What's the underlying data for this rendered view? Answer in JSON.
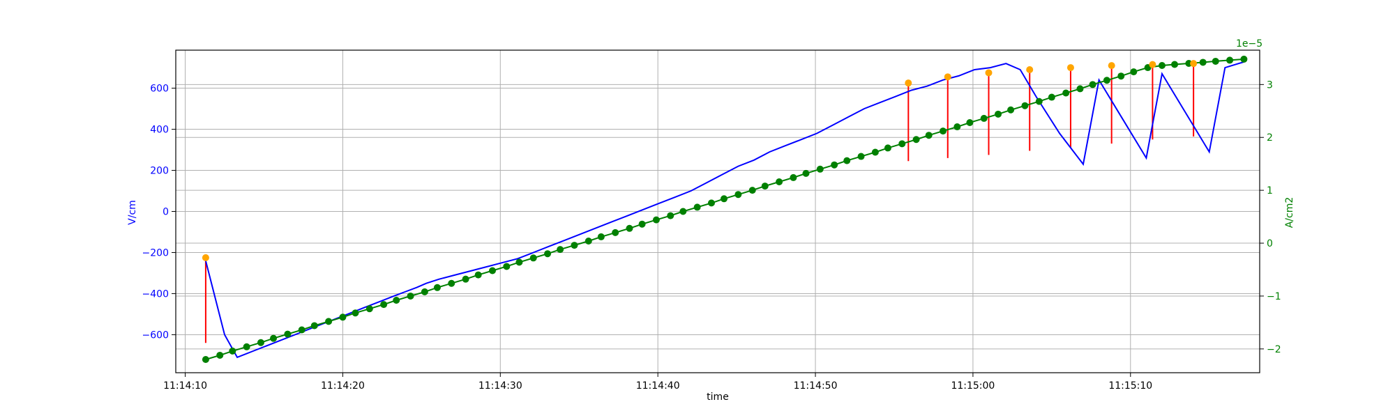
{
  "chart_data": {
    "type": "line",
    "title": "",
    "xlabel": "time",
    "ylabel_left": "V/cm",
    "ylabel_right": "A/cm2",
    "right_axis_multiplier": "1e−5",
    "grid": true,
    "colors": {
      "left_series": "#0000ff",
      "right_series": "#008000",
      "markers_orange": "#ffa500",
      "error_bars": "#ff0000",
      "axis": "#000000",
      "grid": "#b0b0b0"
    },
    "x_ticks": [
      "11:14:10",
      "11:14:20",
      "11:14:30",
      "11:14:40",
      "11:14:50",
      "11:15:00",
      "11:15:10"
    ],
    "xlim_seconds": [
      -0.6,
      68.2
    ],
    "yticks_left": [
      -600,
      -400,
      -200,
      0,
      200,
      400,
      600
    ],
    "ylim_left": [
      -785,
      785
    ],
    "yticks_right": [
      -2,
      -1,
      0,
      1,
      2,
      3
    ],
    "ylim_right": [
      -2.45,
      3.65
    ],
    "series": [
      {
        "axis": "left",
        "x_seconds": [
          1.3,
          2.5,
          3.3,
          4.3,
          5.3,
          6.3,
          7.3,
          8.3,
          9.3,
          10.3,
          11.3,
          12.3,
          13.3,
          14.0,
          14.7,
          15.3,
          16.1,
          17.1,
          18.1,
          19.1,
          20.1,
          21.1,
          22.1,
          23.1,
          24.1,
          25.1,
          26.1,
          27.1,
          28.1,
          29.1,
          30.1,
          31.1,
          32.1,
          33.1,
          34.1,
          35.1,
          36.1,
          37.1,
          38.1,
          39.1,
          40.1,
          41.1,
          42.1,
          43.1,
          44.1,
          45.1,
          46.1,
          47.1,
          48.1,
          49.1,
          50.1,
          51.1,
          52.1,
          53.0,
          54.0,
          55.5,
          57.0,
          58.0,
          59.5,
          61.0,
          62.0,
          63.5,
          65.0,
          66.0,
          67.3
        ],
        "values": [
          -240,
          -600,
          -710,
          -680,
          -650,
          -620,
          -590,
          -560,
          -530,
          -500,
          -470,
          -440,
          -410,
          -390,
          -370,
          -350,
          -330,
          -310,
          -290,
          -270,
          -250,
          -230,
          -200,
          -170,
          -140,
          -110,
          -80,
          -50,
          -20,
          10,
          40,
          70,
          100,
          140,
          180,
          220,
          250,
          290,
          320,
          350,
          380,
          420,
          460,
          500,
          530,
          560,
          590,
          610,
          640,
          660,
          690,
          700,
          720,
          690,
          560,
          380,
          230,
          640,
          450,
          260,
          670,
          480,
          290,
          700,
          730
        ]
      },
      {
        "axis": "right",
        "x_seconds": [
          1.3,
          2.2,
          3.0,
          3.9,
          4.8,
          5.6,
          6.5,
          7.4,
          8.2,
          9.1,
          10.0,
          10.8,
          11.7,
          12.6,
          13.4,
          14.3,
          15.2,
          16.0,
          16.9,
          17.8,
          18.6,
          19.5,
          20.4,
          21.2,
          22.1,
          23.0,
          23.8,
          24.7,
          25.6,
          26.4,
          27.3,
          28.2,
          29.0,
          29.9,
          30.8,
          31.6,
          32.5,
          33.4,
          34.2,
          35.1,
          36.0,
          36.8,
          37.7,
          38.6,
          39.4,
          40.3,
          41.2,
          42.0,
          42.9,
          43.8,
          44.6,
          45.5,
          46.4,
          47.2,
          48.1,
          49.0,
          49.8,
          50.7,
          51.6,
          52.4,
          53.3,
          54.2,
          55.0,
          55.9,
          56.8,
          57.6,
          58.5,
          59.4,
          60.2,
          61.1,
          62.0,
          62.8,
          63.7,
          64.6,
          65.4,
          66.3,
          67.2
        ],
        "values": [
          -2.2,
          -2.12,
          -2.04,
          -1.96,
          -1.88,
          -1.8,
          -1.72,
          -1.64,
          -1.56,
          -1.48,
          -1.4,
          -1.32,
          -1.24,
          -1.16,
          -1.08,
          -1.0,
          -0.92,
          -0.84,
          -0.76,
          -0.68,
          -0.6,
          -0.52,
          -0.44,
          -0.36,
          -0.28,
          -0.2,
          -0.12,
          -0.04,
          0.04,
          0.12,
          0.2,
          0.28,
          0.36,
          0.44,
          0.52,
          0.6,
          0.68,
          0.76,
          0.84,
          0.92,
          1.0,
          1.08,
          1.16,
          1.24,
          1.32,
          1.4,
          1.48,
          1.56,
          1.64,
          1.72,
          1.8,
          1.88,
          1.96,
          2.04,
          2.12,
          2.2,
          2.28,
          2.36,
          2.44,
          2.52,
          2.6,
          2.68,
          2.76,
          2.84,
          2.92,
          3.0,
          3.08,
          3.16,
          3.24,
          3.32,
          3.36,
          3.38,
          3.4,
          3.42,
          3.44,
          3.46,
          3.48
        ]
      }
    ],
    "orange_points": {
      "axis": "left",
      "x_seconds": [
        1.3,
        45.9,
        48.4,
        51.0,
        53.6,
        56.2,
        58.8,
        61.4,
        64.0
      ],
      "values": [
        -225,
        625,
        655,
        675,
        690,
        700,
        710,
        715,
        720
      ]
    },
    "error_bars": {
      "axis": "left",
      "x_seconds": [
        1.3,
        45.9,
        48.4,
        51.0,
        53.6,
        56.2,
        58.8,
        61.4,
        64.0
      ],
      "low": [
        -640,
        245,
        260,
        275,
        295,
        310,
        330,
        350,
        365
      ],
      "high": [
        -225,
        625,
        655,
        675,
        690,
        700,
        710,
        715,
        720
      ]
    }
  }
}
